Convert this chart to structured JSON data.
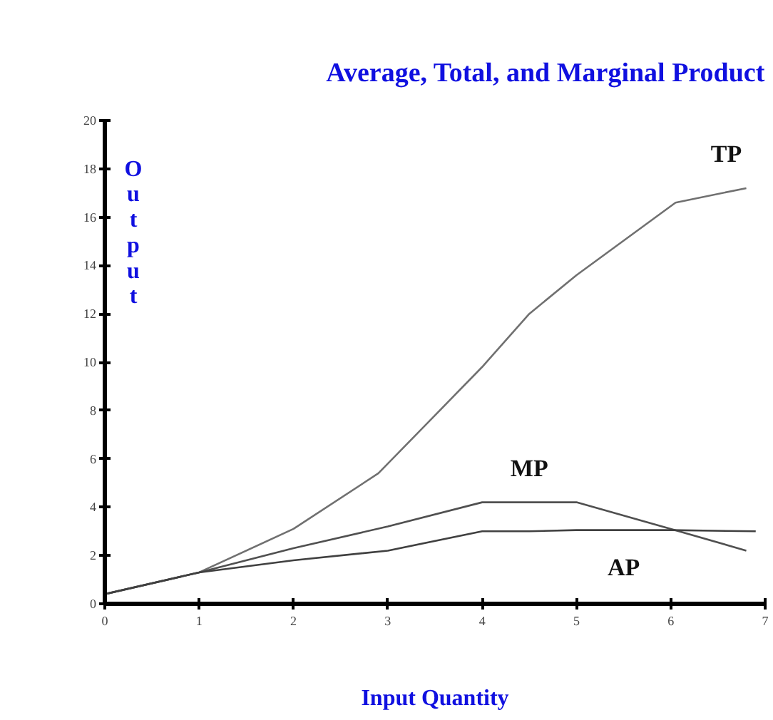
{
  "chart_data": {
    "type": "line",
    "title": "Average, Total, and Marginal Product",
    "xlabel": "Input Quantity",
    "ylabel": "Output",
    "xlim": [
      0,
      7
    ],
    "ylim": [
      0,
      20
    ],
    "xticks": [
      0,
      1,
      2,
      3,
      4,
      5,
      6,
      7
    ],
    "yticks": [
      0,
      2,
      4,
      6,
      8,
      10,
      12,
      14,
      16,
      18,
      20
    ],
    "grid": false,
    "marker": "none",
    "line_style": "solid",
    "series": [
      {
        "name": "TP",
        "color": "#707070",
        "x": [
          0,
          1,
          2,
          2.9,
          3.5,
          4,
          4.5,
          5,
          6.05,
          6.8
        ],
        "values": [
          0.4,
          1.3,
          3.1,
          5.4,
          7.8,
          9.8,
          12,
          13.6,
          16.6,
          17.2
        ]
      },
      {
        "name": "MP",
        "color": "#505050",
        "x": [
          0,
          1,
          2,
          3,
          4,
          5,
          6,
          6.8
        ],
        "values": [
          0.4,
          1.3,
          2.3,
          3.2,
          4.2,
          4.2,
          3.1,
          2.2
        ]
      },
      {
        "name": "AP",
        "color": "#404040",
        "x": [
          0,
          1,
          2,
          3,
          4,
          4.5,
          5,
          6,
          6.9
        ],
        "values": [
          0.4,
          1.3,
          1.8,
          2.2,
          3.0,
          3.0,
          3.05,
          3.05,
          3.0
        ]
      }
    ]
  }
}
